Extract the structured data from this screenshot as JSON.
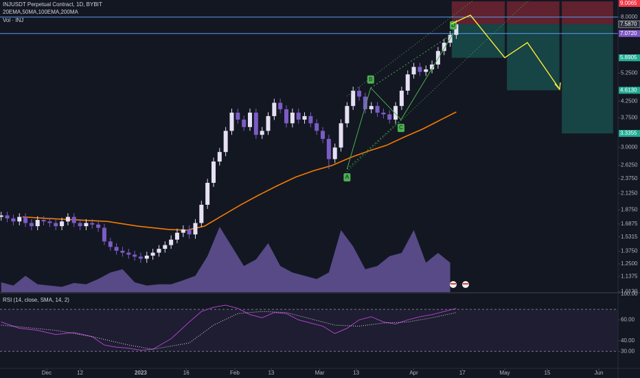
{
  "chart_data": {
    "type": "candlestick",
    "title": "INJUSDT Perpetual Contract, 1D, BYBIT",
    "indicators_label": "20EMA,50MA,100EMA,200MA",
    "volume_label": "Vol · INJ",
    "rsi_label": "RSI (14, close, SMA, 14, 2)",
    "rsi_top_label": "100.00",
    "log_scale": true,
    "up_color": "#e6e0f5",
    "down_color": "#7b5cc4",
    "xlim": [
      -15.39,
      188.32
    ],
    "xticks": [
      {
        "value": 0,
        "label": "Dec"
      },
      12,
      {
        "value": 31,
        "label": "2023"
      },
      16,
      {
        "value": 62,
        "label": "Feb"
      },
      13,
      {
        "value": 90,
        "label": "Mar"
      },
      13,
      {
        "value": 121,
        "label": "Apr"
      },
      17,
      {
        "value": 151,
        "label": "May"
      },
      15,
      {
        "value": 182,
        "label": "Jun"
      }
    ],
    "xtick_positions": [
      0,
      11,
      31,
      46,
      62,
      74,
      90,
      102,
      121,
      137,
      151,
      165,
      182
    ],
    "ylim": [
      1.011,
      9.1
    ],
    "yticks": [
      {
        "value": 8,
        "label": "8.0000"
      },
      {
        "value": 5.25,
        "label": "5.2500"
      },
      {
        "value": 4.25,
        "label": "4.2500"
      },
      {
        "value": 3.75,
        "label": "3.7500"
      },
      {
        "value": 3,
        "label": "3.0000"
      },
      {
        "value": 2.625,
        "label": "2.6250"
      },
      {
        "value": 2.375,
        "label": "2.3750"
      },
      {
        "value": 2.125,
        "label": "2.1250"
      },
      {
        "value": 1.875,
        "label": "1.8750"
      },
      {
        "value": 1.6875,
        "label": "1.6875"
      },
      {
        "value": 1.5315,
        "label": "1.5315"
      },
      {
        "value": 1.375,
        "label": "1.3750"
      },
      {
        "value": 1.25,
        "label": "1.2500"
      },
      {
        "value": 1.1375,
        "label": "1.1375"
      },
      {
        "value": 1.013,
        "label": "1.0130"
      }
    ],
    "x": [
      -15,
      -13,
      -11,
      -9,
      -7,
      -5,
      -3,
      -1,
      1,
      3,
      5,
      7,
      9,
      11,
      13,
      15,
      17,
      19,
      21,
      23,
      25,
      27,
      29,
      31,
      33,
      35,
      37,
      39,
      41,
      43,
      45,
      47,
      49,
      51,
      53,
      55,
      57,
      59,
      61,
      63,
      65,
      67,
      69,
      71,
      73,
      75,
      77,
      79,
      81,
      83,
      85,
      87,
      89,
      91,
      93,
      95,
      97,
      99,
      101,
      103,
      105,
      107,
      109,
      111,
      113,
      115,
      117,
      119,
      121,
      123,
      125,
      127,
      129,
      131,
      133,
      135
    ],
    "open": [
      1.78,
      1.8,
      1.76,
      1.72,
      1.78,
      1.7,
      1.66,
      1.74,
      1.72,
      1.7,
      1.66,
      1.72,
      1.78,
      1.7,
      1.66,
      1.7,
      1.68,
      1.64,
      1.48,
      1.42,
      1.38,
      1.36,
      1.34,
      1.32,
      1.3,
      1.33,
      1.36,
      1.4,
      1.44,
      1.5,
      1.58,
      1.62,
      1.56,
      1.7,
      1.95,
      2.3,
      2.7,
      2.9,
      3.4,
      3.9,
      3.7,
      3.5,
      3.9,
      3.3,
      3.4,
      3.8,
      4.2,
      4.0,
      3.6,
      3.9,
      3.7,
      3.8,
      3.6,
      3.4,
      3.2,
      2.75,
      3.0,
      3.6,
      4.1,
      4.6,
      4.4,
      4.0,
      4.1,
      3.9,
      3.85,
      3.7,
      4.1,
      4.6,
      5.2,
      5.5,
      5.3,
      5.4,
      5.6,
      6.2,
      6.6,
      7.0
    ],
    "high": [
      1.85,
      1.85,
      1.81,
      1.83,
      1.83,
      1.75,
      1.79,
      1.79,
      1.77,
      1.75,
      1.77,
      1.83,
      1.83,
      1.75,
      1.75,
      1.75,
      1.73,
      1.69,
      1.52,
      1.46,
      1.42,
      1.4,
      1.38,
      1.36,
      1.37,
      1.4,
      1.44,
      1.48,
      1.55,
      1.63,
      1.67,
      1.67,
      1.75,
      2.01,
      2.37,
      2.78,
      2.99,
      3.5,
      4.02,
      4.02,
      3.81,
      4.02,
      4.02,
      3.5,
      3.91,
      4.33,
      4.33,
      4.12,
      4.02,
      4.02,
      3.91,
      3.91,
      3.71,
      3.5,
      3.3,
      3.09,
      3.71,
      4.22,
      4.74,
      4.74,
      4.53,
      4.22,
      4.22,
      4.02,
      3.97,
      4.22,
      4.74,
      5.36,
      5.67,
      5.67,
      5.56,
      5.77,
      6.39,
      6.8,
      7.21,
      7.81
    ],
    "low": [
      1.73,
      1.71,
      1.67,
      1.67,
      1.65,
      1.61,
      1.61,
      1.67,
      1.65,
      1.61,
      1.61,
      1.67,
      1.65,
      1.61,
      1.61,
      1.63,
      1.59,
      1.44,
      1.38,
      1.34,
      1.32,
      1.3,
      1.28,
      1.26,
      1.26,
      1.29,
      1.32,
      1.36,
      1.4,
      1.46,
      1.53,
      1.51,
      1.51,
      1.65,
      1.89,
      2.23,
      2.62,
      2.81,
      3.3,
      3.59,
      3.4,
      3.4,
      3.2,
      3.2,
      3.3,
      3.69,
      3.88,
      3.49,
      3.49,
      3.59,
      3.59,
      3.49,
      3.3,
      3.1,
      2.55,
      2.67,
      2.91,
      3.49,
      3.98,
      4.27,
      3.88,
      3.88,
      3.78,
      3.73,
      3.59,
      3.59,
      3.98,
      4.46,
      5.04,
      5.14,
      5.14,
      5.24,
      5.43,
      6.01,
      6.4,
      6.79
    ],
    "close": [
      1.8,
      1.76,
      1.72,
      1.78,
      1.7,
      1.66,
      1.74,
      1.72,
      1.7,
      1.66,
      1.72,
      1.78,
      1.7,
      1.66,
      1.7,
      1.68,
      1.64,
      1.48,
      1.42,
      1.38,
      1.36,
      1.34,
      1.32,
      1.3,
      1.33,
      1.36,
      1.4,
      1.44,
      1.5,
      1.58,
      1.62,
      1.56,
      1.7,
      1.95,
      2.3,
      2.7,
      2.9,
      3.4,
      3.9,
      3.7,
      3.5,
      3.9,
      3.3,
      3.4,
      3.8,
      4.2,
      4.0,
      3.6,
      3.9,
      3.7,
      3.8,
      3.6,
      3.4,
      3.2,
      2.75,
      3.0,
      3.6,
      4.1,
      4.6,
      4.4,
      4.0,
      4.1,
      3.9,
      3.85,
      3.7,
      4.1,
      4.6,
      5.2,
      5.5,
      5.3,
      5.4,
      5.6,
      6.2,
      6.6,
      7.0,
      7.58
    ],
    "ema": {
      "color": "#f57c00",
      "x": [
        -8,
        0,
        10,
        20,
        30,
        40,
        46,
        52,
        58,
        64,
        70,
        76,
        82,
        88,
        94,
        100,
        106,
        112,
        118,
        124,
        130,
        135
      ],
      "values": [
        1.78,
        1.76,
        1.74,
        1.72,
        1.66,
        1.62,
        1.61,
        1.66,
        1.8,
        1.95,
        2.1,
        2.25,
        2.4,
        2.52,
        2.62,
        2.78,
        2.92,
        3.05,
        3.25,
        3.45,
        3.7,
        3.92
      ]
    },
    "volume": {
      "color": "#6f5ca8",
      "ylim": [
        0,
        100
      ],
      "x": [
        -15,
        -11,
        -7,
        -3,
        1,
        5,
        9,
        13,
        17,
        21,
        25,
        29,
        33,
        37,
        41,
        45,
        49,
        53,
        57,
        61,
        65,
        69,
        73,
        77,
        81,
        85,
        89,
        93,
        97,
        101,
        105,
        109,
        113,
        117,
        121,
        125,
        129,
        133
      ],
      "values": [
        15,
        10,
        25,
        12,
        10,
        8,
        14,
        12,
        20,
        30,
        35,
        15,
        10,
        12,
        12,
        18,
        25,
        55,
        100,
        70,
        40,
        50,
        75,
        40,
        30,
        25,
        20,
        30,
        95,
        70,
        35,
        40,
        55,
        60,
        95,
        45,
        60,
        45
      ]
    },
    "rsi": {
      "color": "#b040c8",
      "ylim": [
        14.4,
        81.9
      ],
      "yticks": [
        {
          "value": 60,
          "label": "60.00"
        },
        {
          "value": 40,
          "label": "40.00"
        },
        {
          "value": 30,
          "label": "30.00"
        }
      ],
      "levels": [
        70,
        30
      ],
      "x": [
        -15,
        -9,
        -3,
        3,
        9,
        15,
        19,
        23,
        27,
        31,
        35,
        41,
        47,
        51,
        55,
        59,
        63,
        67,
        71,
        75,
        79,
        83,
        87,
        91,
        95,
        99,
        103,
        107,
        111,
        115,
        119,
        123,
        127,
        131,
        135
      ],
      "values": [
        58,
        52,
        50,
        46,
        48,
        44,
        36,
        34,
        33,
        31,
        32,
        42,
        58,
        68,
        72,
        74,
        71,
        65,
        62,
        67,
        66,
        60,
        57,
        54,
        47,
        52,
        60,
        63,
        58,
        56,
        60,
        63,
        65,
        68,
        71
      ],
      "sma_x": [
        -15,
        3,
        15,
        27,
        35,
        47,
        55,
        63,
        71,
        79,
        87,
        95,
        103,
        111,
        119,
        127,
        135
      ],
      "sma_values": [
        55,
        50,
        44,
        36,
        32,
        38,
        55,
        66,
        68,
        67,
        61,
        55,
        54,
        57,
        58,
        62,
        67
      ]
    },
    "abcd": [
      {
        "label": "A",
        "x": 99,
        "y": 2.55
      },
      {
        "label": "B",
        "x": 106.8,
        "y": 4.7
      },
      {
        "label": "C",
        "x": 116.8,
        "y": 3.7
      },
      {
        "label": "D",
        "x": 134,
        "y": 7.07
      }
    ],
    "price_labels": [
      {
        "value": 9.0065,
        "label": "9.0065",
        "color": "#f23645"
      },
      {
        "value": 7.587,
        "label": "7.5870",
        "color": "#2a2e39"
      },
      {
        "value": 7.072,
        "label": "7.0720",
        "color": "#7e57c2"
      },
      {
        "value": 5.8905,
        "label": "5.8905",
        "color": "#22ab94"
      },
      {
        "value": 4.613,
        "label": "4.6130",
        "color": "#22ab94"
      },
      {
        "value": 3.3355,
        "label": "3.3355",
        "color": "#22ab94"
      }
    ],
    "horizontal_lines": [
      8,
      7.072
    ],
    "positions": [
      {
        "x0": 133.5,
        "x1": 151,
        "target": 5.8905
      },
      {
        "x0": 151.7,
        "x1": 169,
        "target": 4.613
      },
      {
        "x0": 169.8,
        "x1": 186.7,
        "target": 3.3355
      }
    ],
    "entry": 7.587,
    "stop": 9.0065
  }
}
